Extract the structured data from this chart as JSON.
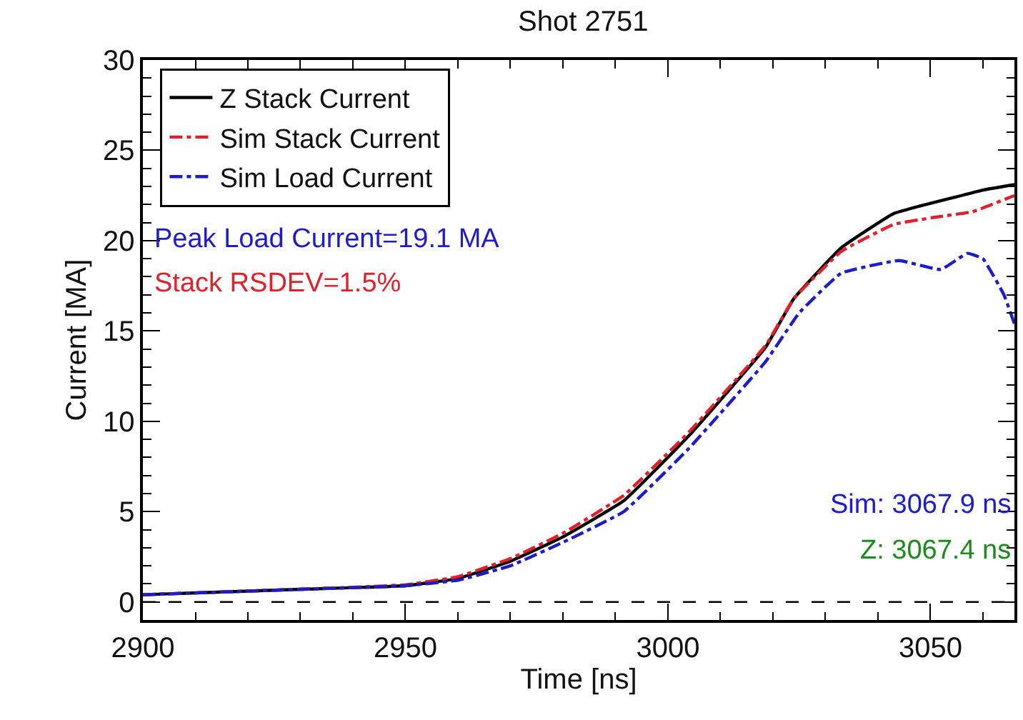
{
  "chart_data": {
    "type": "line",
    "title": "Shot 2751",
    "xlabel": "Time [ns]",
    "ylabel": "Current [MA]",
    "xlim": [
      2900,
      3066
    ],
    "xticks": [
      2900,
      2950,
      3000,
      3050
    ],
    "ylim": [
      -1,
      30
    ],
    "yticks": [
      0,
      5,
      10,
      15,
      20,
      25,
      30
    ],
    "legend": "top left",
    "marker": "none",
    "series": [
      {
        "name": "Z Stack Current",
        "color": "#000000",
        "line_style": "solid",
        "x": [
          2900,
          2930,
          2950,
          2960,
          2970,
          2980,
          2991.6,
          3004,
          3018.6,
          3024,
          3033,
          3043,
          3054.6,
          3060,
          3066
        ],
        "values": [
          0.4,
          0.7,
          0.9,
          1.3,
          2.25,
          3.6,
          5.6,
          9.2,
          14.1,
          16.8,
          19.6,
          21.5,
          22.4,
          22.8,
          23.1
        ]
      },
      {
        "name": "Sim Stack Current",
        "color": "#e0202a",
        "line_style": "dashdot",
        "x": [
          2900,
          2930,
          2950,
          2960,
          2970,
          2980,
          2991.6,
          3004,
          3018.6,
          3024,
          3033,
          3043,
          3051,
          3058,
          3066
        ],
        "values": [
          0.4,
          0.7,
          0.95,
          1.4,
          2.4,
          3.8,
          5.9,
          9.4,
          14.2,
          16.8,
          19.4,
          20.9,
          21.3,
          21.6,
          22.5
        ]
      },
      {
        "name": "Sim Load Current",
        "color": "#1c1cc8",
        "line_style": "dashdot",
        "x": [
          2900,
          2930,
          2950,
          2960,
          2970,
          2980,
          2991.6,
          3004,
          3018.6,
          3025,
          3033,
          3044,
          3052,
          3057,
          3060,
          3064,
          3066
        ],
        "values": [
          0.4,
          0.7,
          0.9,
          1.2,
          2.0,
          3.3,
          5.0,
          8.5,
          13.3,
          16.0,
          18.2,
          18.9,
          18.4,
          19.3,
          19.0,
          17.0,
          15.4
        ]
      }
    ],
    "ref_lines": [
      {
        "axis": "y",
        "value": 0,
        "color": "#000000",
        "line_style": "dashed"
      }
    ],
    "annotations": [
      "Peak Load Current=19.1 MA",
      "Stack RSDEV=1.5%",
      "Sim: 3067.9 ns",
      "Z: 3067.4 ns"
    ]
  }
}
